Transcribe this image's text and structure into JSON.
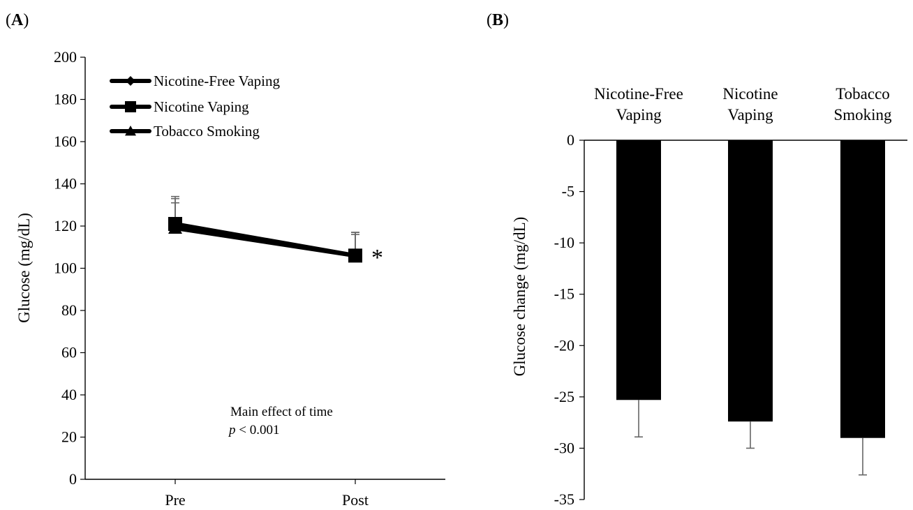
{
  "chart_data": [
    {
      "panel_label": "A",
      "type": "line",
      "categories": [
        "Pre",
        "Post"
      ],
      "ylabel": "Glucose (mg/dL)",
      "ylim": [
        0,
        200
      ],
      "yticks": [
        0,
        20,
        40,
        60,
        80,
        100,
        120,
        140,
        160,
        180,
        200
      ],
      "legend_position": "top-left",
      "series": [
        {
          "name": "Nicotine-Free Vaping",
          "marker": "diamond",
          "values": [
            120,
            106
          ],
          "error_upper": [
            133,
            117
          ]
        },
        {
          "name": "Nicotine Vaping",
          "marker": "square",
          "values": [
            121,
            106
          ],
          "error_upper": [
            134,
            117
          ]
        },
        {
          "name": "Tobacco Smoking",
          "marker": "triangle",
          "values": [
            119,
            106
          ],
          "error_upper": [
            131,
            116
          ]
        }
      ],
      "significance_marker": "*",
      "annotation": {
        "line1": "Main effect of time",
        "p_symbol": "p",
        "p_rest": " < 0.001"
      }
    },
    {
      "panel_label": "B",
      "type": "bar",
      "categories": [
        [
          "Nicotine-Free",
          "Vaping"
        ],
        [
          "Nicotine",
          "Vaping"
        ],
        [
          "Tobacco",
          "Smoking"
        ]
      ],
      "values": [
        -25.3,
        -27.4,
        -29.0
      ],
      "error_lower": [
        -28.9,
        -30.0,
        -32.6
      ],
      "ylabel": "Glucose change (mg/dL)",
      "ylim": [
        -35,
        0
      ],
      "yticks": [
        0,
        -5,
        -10,
        -15,
        -20,
        -25,
        -30,
        -35
      ]
    }
  ]
}
